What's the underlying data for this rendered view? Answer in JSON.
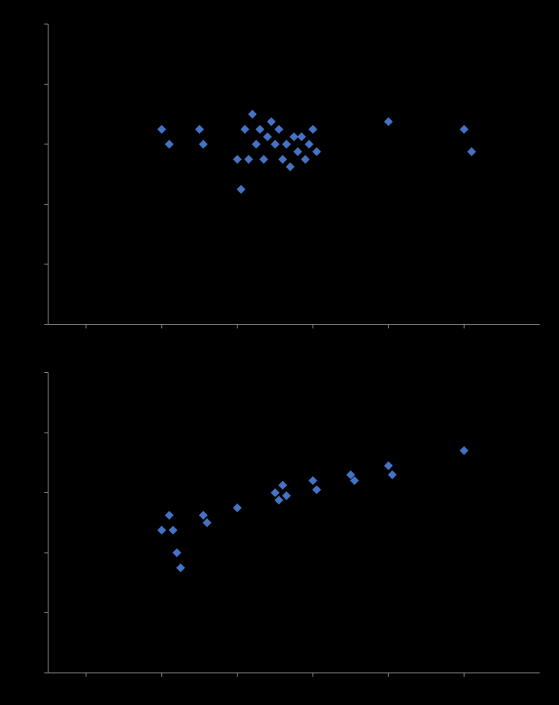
{
  "chart_data": [
    {
      "type": "scatter",
      "x": [
        2.0,
        2.1,
        2.5,
        2.55,
        3.0,
        3.05,
        3.1,
        3.15,
        3.2,
        3.25,
        3.3,
        3.35,
        3.4,
        3.45,
        3.5,
        3.55,
        3.6,
        3.65,
        3.7,
        3.75,
        3.8,
        3.85,
        3.9,
        3.95,
        4.0,
        4.05,
        5.0,
        6.0,
        6.1
      ],
      "values": [
        57,
        56,
        57,
        56,
        55,
        53,
        57,
        55,
        58,
        56,
        57,
        55,
        56.5,
        57.5,
        56,
        57,
        55,
        56,
        54.5,
        56.5,
        55.5,
        56.5,
        55,
        56,
        57,
        55.5,
        57.5,
        57,
        55.5
      ],
      "color": "#4472C4",
      "marker": "diamond",
      "xlim": [
        0.5,
        7
      ],
      "ylim": [
        44,
        64
      ],
      "xticks": [
        1,
        2,
        3,
        4,
        5,
        6
      ],
      "yticks": [
        44,
        48,
        52,
        56,
        60,
        64
      ],
      "grid": false,
      "tick_labels": false
    },
    {
      "type": "scatter",
      "x": [
        2.0,
        2.1,
        2.15,
        2.2,
        2.25,
        2.55,
        2.6,
        3.0,
        3.5,
        3.55,
        3.6,
        3.65,
        4.0,
        4.05,
        4.5,
        4.55,
        5.0,
        5.05,
        6.0
      ],
      "values": [
        3.35,
        3.45,
        3.35,
        3.2,
        3.1,
        3.45,
        3.4,
        3.5,
        3.6,
        3.55,
        3.65,
        3.58,
        3.68,
        3.62,
        3.72,
        3.68,
        3.78,
        3.72,
        3.88
      ],
      "color": "#4472C4",
      "marker": "diamond",
      "xlim": [
        0.5,
        7
      ],
      "ylim": [
        2.4,
        4.4
      ],
      "xticks": [
        1,
        2,
        3,
        4,
        5,
        6
      ],
      "yticks": [
        2.4,
        2.8,
        3.2,
        3.6,
        4.0,
        4.4
      ],
      "grid": false,
      "tick_labels": false
    }
  ]
}
